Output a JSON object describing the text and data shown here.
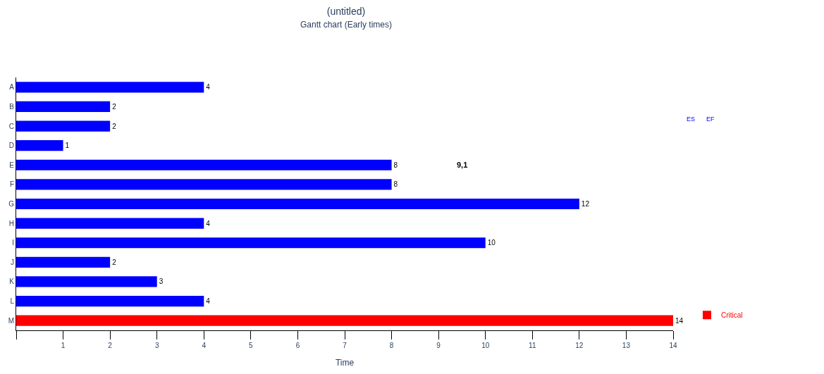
{
  "chart_data": {
    "type": "bar",
    "orientation": "horizontal",
    "title": "(untitled)",
    "subtitle": "Gantt chart (Early times)",
    "xlabel": "Time",
    "categories": [
      "A",
      "B",
      "C",
      "D",
      "E",
      "F",
      "G",
      "H",
      "I",
      "J",
      "K",
      "L",
      "M"
    ],
    "series": [
      {
        "color": "#0000ff",
        "values": [
          4,
          2,
          2,
          1,
          8,
          8,
          12,
          4,
          10,
          2,
          3,
          4,
          null
        ]
      },
      {
        "name": "Critical",
        "color": "#ff0000",
        "values": [
          null,
          null,
          null,
          null,
          null,
          null,
          null,
          null,
          null,
          null,
          null,
          null,
          14
        ]
      }
    ],
    "xlim": [
      0,
      14
    ],
    "xticks": [
      {
        "value": 0,
        "label": null
      },
      1,
      2,
      3,
      4,
      5,
      6,
      7,
      8,
      9,
      10,
      11,
      12,
      13,
      14
    ],
    "data_labels": true,
    "legend": "right",
    "annotations": [
      "9,1",
      "ES",
      "EF"
    ]
  }
}
